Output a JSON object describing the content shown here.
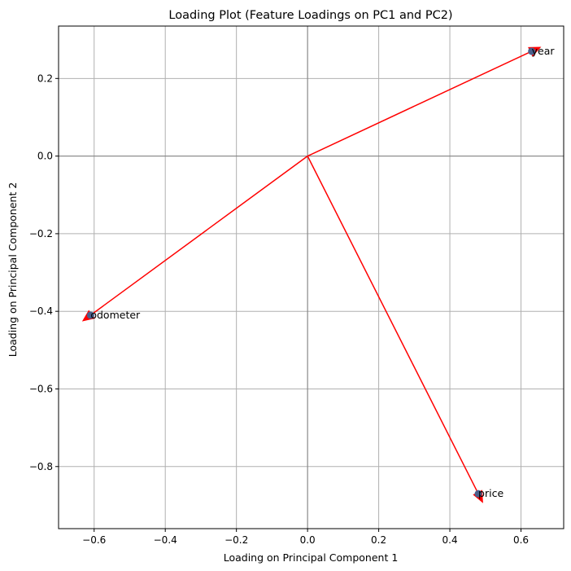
{
  "chart_data": {
    "type": "scatter",
    "title": "Loading Plot (Feature Loadings on PC1 and PC2)",
    "xlabel": "Loading on Principal Component 1",
    "ylabel": "Loading on Principal Component 2",
    "xlim": [
      -0.7,
      0.72
    ],
    "ylim": [
      -0.96,
      0.335
    ],
    "xticks": [
      -0.6,
      -0.4,
      -0.2,
      0.0,
      0.2,
      0.4,
      0.6
    ],
    "xtick_labels": [
      "−0.6",
      "−0.4",
      "−0.2",
      "0.0",
      "0.2",
      "0.4",
      "0.6"
    ],
    "yticks": [
      0.2,
      0.0,
      -0.2,
      -0.4,
      -0.6,
      -0.8
    ],
    "ytick_labels": [
      "0.2",
      "0.0",
      "−0.2",
      "−0.4",
      "−0.6",
      "−0.8"
    ],
    "grid": true,
    "reference_lines": [
      0,
      0
    ],
    "arrow_color": "#ff0000",
    "point_color": "#4a5f8c",
    "points": [
      {
        "label": "year",
        "x": 0.63,
        "y": 0.27
      },
      {
        "label": "odometer",
        "x": -0.61,
        "y": -0.41
      },
      {
        "label": "price",
        "x": 0.48,
        "y": -0.87
      }
    ]
  }
}
